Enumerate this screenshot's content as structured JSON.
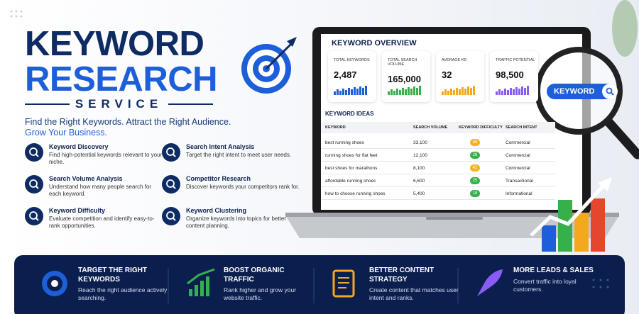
{
  "header": {
    "title_line1": "KEYWORD",
    "title_line2": "RESEARCH",
    "subtitle": "SERVICE",
    "tagline": "Find the Right Keywords. Attract the Right Audience.",
    "tagline_highlight": "Grow Your Business."
  },
  "features": [
    {
      "title": "Keyword Discovery",
      "description": "Find high-potential keywords relevant to your niche."
    },
    {
      "title": "Search Intent Analysis",
      "description": "Target the right intent to meet user needs."
    },
    {
      "title": "Search Volume Analysis",
      "description": "Understand how many people search for each keyword."
    },
    {
      "title": "Competitor Research",
      "description": "Discover keywords your competitors rank for."
    },
    {
      "title": "Keyword Difficulty",
      "description": "Evaluate competition and identify easy-to-rank opportunities."
    },
    {
      "title": "Keyword Clustering",
      "description": "Organize keywords into topics for better content planning."
    }
  ],
  "dashboard": {
    "title": "KEYWORD OVERVIEW",
    "stats": [
      {
        "label": "TOTAL KEYWORDS",
        "value": "2,487"
      },
      {
        "label": "TOTAL SEARCH VOLUME",
        "value": "165,000"
      },
      {
        "label": "AVERAGE KD",
        "value": "32"
      },
      {
        "label": "TRAFFIC POTENTIAL",
        "value": "98,500"
      }
    ],
    "ideas_title": "KEYWORD IDEAS",
    "table": {
      "columns": [
        "KEYWORD",
        "SEARCH VOLUME",
        "KEYWORD DIFFICULTY",
        "SEARCH INTENT"
      ],
      "rows": [
        [
          "best running shoes",
          "33,100",
          35,
          "Commercial"
        ],
        [
          "running shoes for flat feet",
          "12,100",
          28,
          "Commercial"
        ],
        [
          "best shoes for marathons",
          "8,100",
          42,
          "Commercial"
        ],
        [
          "affordable running shoes",
          "6,600",
          25,
          "Transactional"
        ],
        [
          "how to choose running shoes",
          "5,400",
          18,
          "Informational"
        ]
      ]
    }
  },
  "search_badge": "KEYWORD",
  "benefits": [
    {
      "title": "TARGET THE RIGHT KEYWORDS",
      "description": "Reach the right audience actively searching."
    },
    {
      "title": "BOOST ORGANIC TRAFFIC",
      "description": "Rank higher and grow your website traffic."
    },
    {
      "title": "BETTER CONTENT STRATEGY",
      "description": "Create content that matches user intent and ranks."
    },
    {
      "title": "MORE LEADS & SALES",
      "description": "Convert traffic into loyal customers."
    }
  ]
}
